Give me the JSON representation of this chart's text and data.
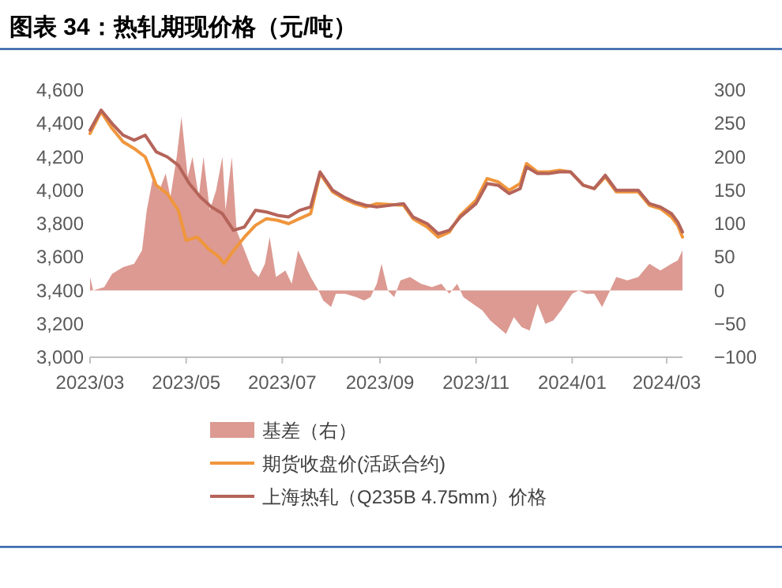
{
  "chart_data": {
    "type": "line",
    "title": "图表 34：热轧期现价格（元/吨）",
    "xlim": [
      "2023-03-01",
      "2024-03-11"
    ],
    "xticks": [
      {
        "value": "2023-03-01",
        "label": "2023/03"
      },
      {
        "value": "2023-05-01",
        "label": "2023/05"
      },
      {
        "value": "2023-07-01",
        "label": "2023/07"
      },
      {
        "value": "2023-09-01",
        "label": "2023/09"
      },
      {
        "value": "2023-11-01",
        "label": "2023/11"
      },
      {
        "value": "2024-01-01",
        "label": "2024/01"
      },
      {
        "value": "2024-03-01",
        "label": "2024/03"
      }
    ],
    "ylim": [
      3000,
      4600
    ],
    "yticks": [
      {
        "value": 3000,
        "label": "3,000"
      },
      {
        "value": 3200,
        "label": "3,200"
      },
      {
        "value": 3400,
        "label": "3,400"
      },
      {
        "value": 3600,
        "label": "3,600"
      },
      {
        "value": 3800,
        "label": "3,800"
      },
      {
        "value": 4000,
        "label": "4,000"
      },
      {
        "value": 4200,
        "label": "4,200"
      },
      {
        "value": 4400,
        "label": "4,400"
      },
      {
        "value": 4600,
        "label": "4,600"
      }
    ],
    "y2lim": [
      -100,
      300
    ],
    "y2ticks": [
      -100,
      -50,
      0,
      50,
      100,
      150,
      200,
      250,
      300
    ],
    "legend": "bottom",
    "grid": false,
    "series": [
      {
        "name": "基差（右）",
        "type": "area",
        "axis": "y2",
        "color": "#dc9a92",
        "x": [
          "2023-03-01",
          "2023-03-03",
          "2023-03-10",
          "2023-03-15",
          "2023-03-22",
          "2023-03-29",
          "2023-04-03",
          "2023-04-06",
          "2023-04-10",
          "2023-04-14",
          "2023-04-18",
          "2023-04-21",
          "2023-04-25",
          "2023-04-28",
          "2023-05-02",
          "2023-05-05",
          "2023-05-09",
          "2023-05-12",
          "2023-05-16",
          "2023-05-20",
          "2023-05-24",
          "2023-05-26",
          "2023-05-30",
          "2023-06-02",
          "2023-06-07",
          "2023-06-12",
          "2023-06-16",
          "2023-06-20",
          "2023-06-23",
          "2023-06-27",
          "2023-07-03",
          "2023-07-07",
          "2023-07-11",
          "2023-07-15",
          "2023-07-19",
          "2023-07-24",
          "2023-07-27",
          "2023-08-01",
          "2023-08-04",
          "2023-08-10",
          "2023-08-17",
          "2023-08-22",
          "2023-08-26",
          "2023-08-30",
          "2023-09-02",
          "2023-09-06",
          "2023-09-10",
          "2023-09-14",
          "2023-09-20",
          "2023-09-27",
          "2023-10-04",
          "2023-10-10",
          "2023-10-15",
          "2023-10-20",
          "2023-10-24",
          "2023-10-30",
          "2023-11-05",
          "2023-11-10",
          "2023-11-15",
          "2023-11-20",
          "2023-11-25",
          "2023-11-30",
          "2023-12-05",
          "2023-12-10",
          "2023-12-15",
          "2023-12-20",
          "2023-12-25",
          "2024-01-01",
          "2024-01-05",
          "2024-01-10",
          "2024-01-15",
          "2024-01-20",
          "2024-01-24",
          "2024-01-29",
          "2024-02-05",
          "2024-02-12",
          "2024-02-19",
          "2024-02-26",
          "2024-03-04",
          "2024-03-08",
          "2024-03-11"
        ],
        "values": [
          20,
          0,
          5,
          25,
          35,
          40,
          60,
          120,
          170,
          150,
          175,
          140,
          200,
          260,
          170,
          200,
          140,
          200,
          120,
          150,
          200,
          120,
          200,
          90,
          60,
          30,
          20,
          40,
          80,
          20,
          30,
          10,
          60,
          40,
          20,
          0,
          -15,
          -25,
          -5,
          -5,
          -10,
          -15,
          -10,
          10,
          40,
          0,
          -10,
          15,
          20,
          10,
          5,
          10,
          -5,
          10,
          -10,
          -20,
          -30,
          -45,
          -55,
          -65,
          -40,
          -55,
          -60,
          -20,
          -50,
          -45,
          -30,
          -5,
          0,
          -5,
          -5,
          -25,
          -5,
          20,
          15,
          20,
          40,
          30,
          40,
          45,
          60
        ]
      },
      {
        "name": "期货收盘价(活跃合约)",
        "type": "line",
        "color": "#f0963c",
        "x": [
          "2023-03-01",
          "2023-03-08",
          "2023-03-15",
          "2023-03-22",
          "2023-03-29",
          "2023-04-05",
          "2023-04-08",
          "2023-04-12",
          "2023-04-19",
          "2023-04-26",
          "2023-05-01",
          "2023-05-08",
          "2023-05-15",
          "2023-05-22",
          "2023-05-25",
          "2023-06-01",
          "2023-06-07",
          "2023-06-14",
          "2023-06-21",
          "2023-06-28",
          "2023-07-05",
          "2023-07-12",
          "2023-07-19",
          "2023-07-25",
          "2023-08-02",
          "2023-08-09",
          "2023-08-16",
          "2023-08-23",
          "2023-08-30",
          "2023-09-16",
          "2023-09-22",
          "2023-10-01",
          "2023-10-08",
          "2023-10-15",
          "2023-10-22",
          "2023-11-01",
          "2023-11-08",
          "2023-11-15",
          "2023-11-22",
          "2023-11-29",
          "2023-12-03",
          "2023-12-10",
          "2023-12-17",
          "2023-12-24",
          "2023-12-31",
          "2024-01-08",
          "2024-01-15",
          "2024-01-22",
          "2024-01-29",
          "2024-02-05",
          "2024-02-12",
          "2024-02-19",
          "2024-02-26",
          "2024-03-04",
          "2024-03-08",
          "2024-03-11"
        ],
        "values": [
          4340,
          4470,
          4370,
          4290,
          4250,
          4200,
          4130,
          4030,
          3980,
          3880,
          3700,
          3720,
          3650,
          3600,
          3560,
          3650,
          3720,
          3790,
          3830,
          3820,
          3800,
          3830,
          3860,
          4100,
          3990,
          3950,
          3920,
          3900,
          3920,
          3910,
          3830,
          3780,
          3720,
          3750,
          3850,
          3940,
          4070,
          4050,
          4000,
          4040,
          4160,
          4110,
          4110,
          4120,
          4110,
          4030,
          4010,
          4080,
          3990,
          3990,
          3990,
          3910,
          3890,
          3840,
          3790,
          3720
        ]
      },
      {
        "name": "上海热轧（Q235B 4.75mm）价格",
        "type": "line",
        "color": "#b5645a",
        "x": [
          "2023-03-01",
          "2023-03-08",
          "2023-03-15",
          "2023-03-22",
          "2023-03-29",
          "2023-04-05",
          "2023-04-12",
          "2023-04-19",
          "2023-04-26",
          "2023-05-03",
          "2023-05-10",
          "2023-05-17",
          "2023-05-24",
          "2023-05-31",
          "2023-06-07",
          "2023-06-14",
          "2023-06-21",
          "2023-06-28",
          "2023-07-05",
          "2023-07-12",
          "2023-07-19",
          "2023-07-25",
          "2023-08-02",
          "2023-08-09",
          "2023-08-16",
          "2023-08-23",
          "2023-08-30",
          "2023-09-16",
          "2023-09-22",
          "2023-10-01",
          "2023-10-08",
          "2023-10-15",
          "2023-10-22",
          "2023-11-01",
          "2023-11-08",
          "2023-11-15",
          "2023-11-22",
          "2023-11-29",
          "2023-12-03",
          "2023-12-10",
          "2023-12-17",
          "2023-12-24",
          "2023-12-31",
          "2024-01-08",
          "2024-01-15",
          "2024-01-22",
          "2024-01-29",
          "2024-02-05",
          "2024-02-12",
          "2024-02-19",
          "2024-02-26",
          "2024-03-04",
          "2024-03-08",
          "2024-03-11"
        ],
        "values": [
          4360,
          4480,
          4400,
          4330,
          4300,
          4330,
          4230,
          4200,
          4150,
          4040,
          3960,
          3900,
          3860,
          3760,
          3780,
          3880,
          3870,
          3850,
          3840,
          3880,
          3900,
          4110,
          4000,
          3960,
          3930,
          3910,
          3900,
          3920,
          3840,
          3800,
          3740,
          3760,
          3840,
          3920,
          4040,
          4030,
          3980,
          4010,
          4140,
          4100,
          4100,
          4110,
          4110,
          4030,
          4010,
          4090,
          4000,
          4000,
          4000,
          3920,
          3900,
          3860,
          3810,
          3750
        ]
      }
    ]
  }
}
